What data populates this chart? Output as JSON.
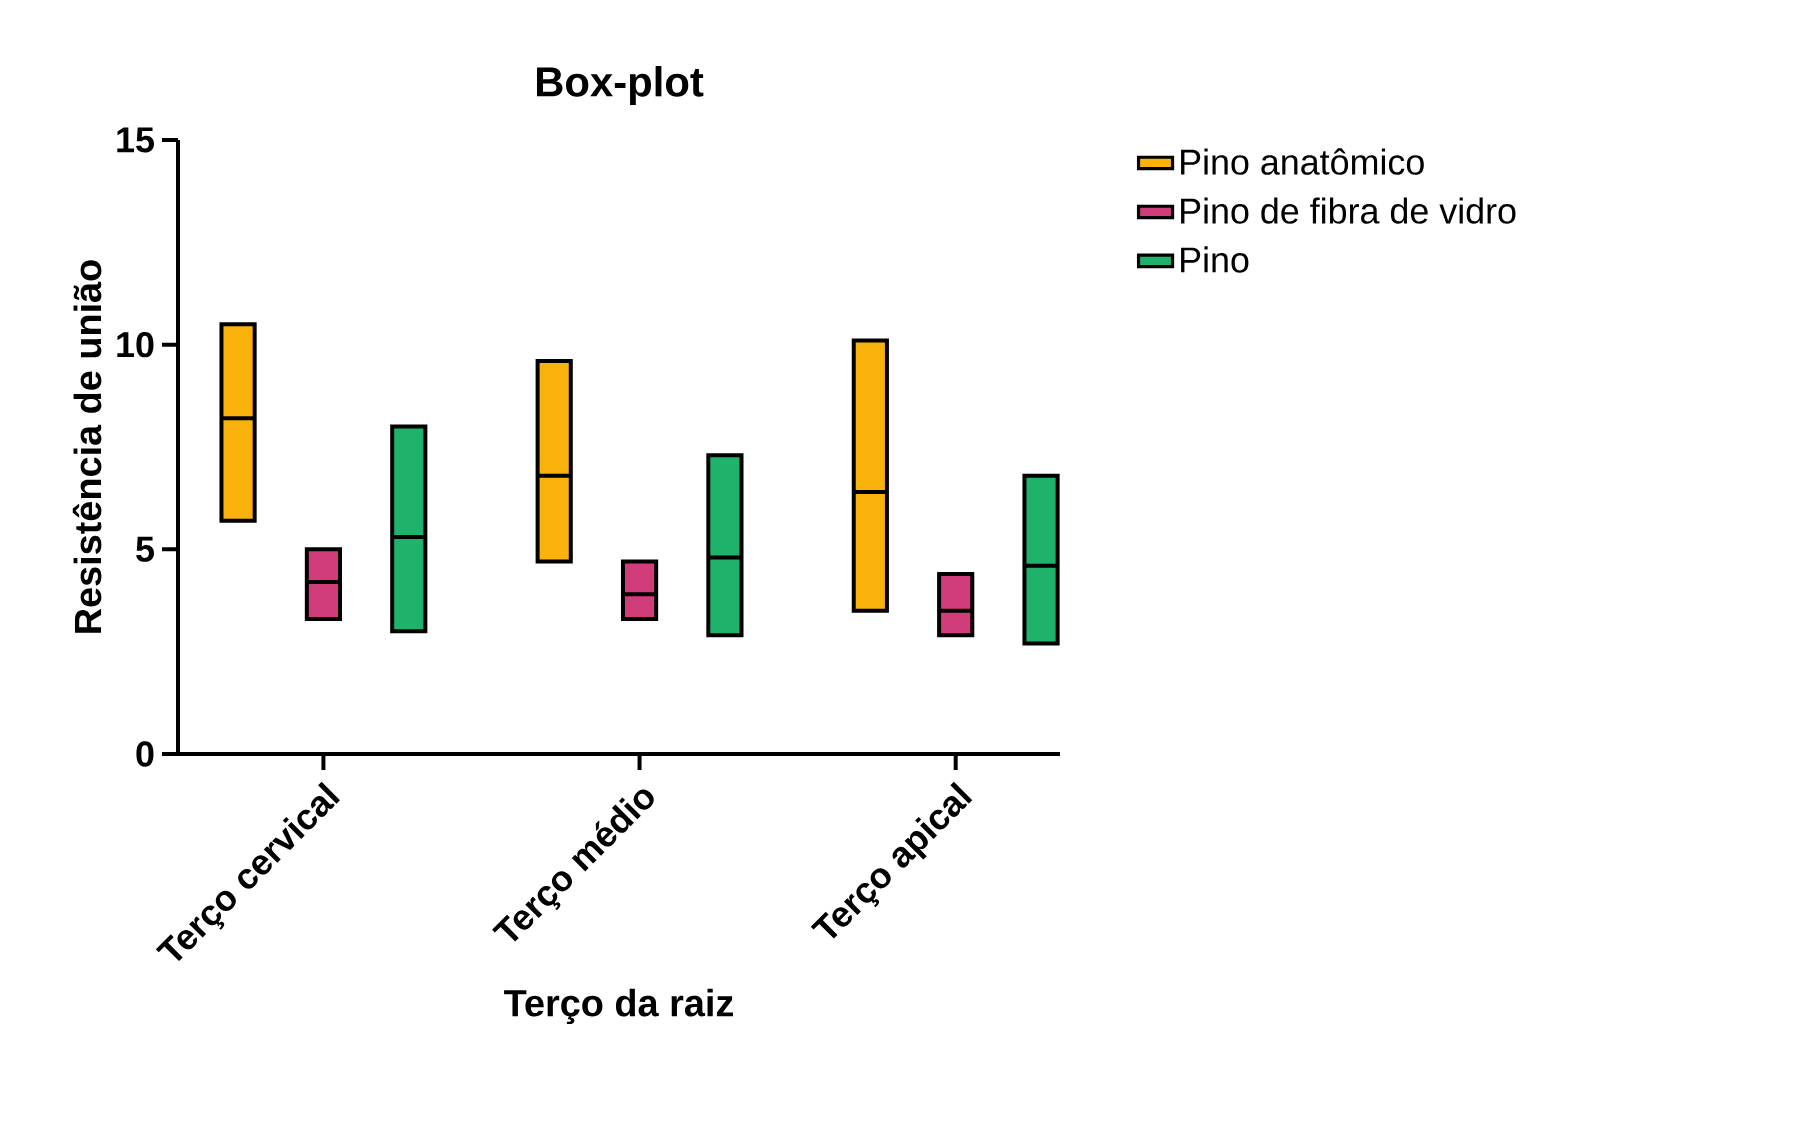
{
  "chart_data": {
    "type": "box",
    "title": "Box-plot",
    "xlabel": "Terço da raiz",
    "ylabel": "Resistência de união",
    "categories": [
      "Terço cervical",
      "Terço médio",
      "Terço apical"
    ],
    "ylim": [
      0,
      15
    ],
    "yticks": [
      0,
      5,
      10,
      15
    ],
    "grid": false,
    "legend": "top right",
    "series": [
      {
        "name": "Pino anatômico",
        "color": "#f9b10c",
        "boxes": [
          {
            "low": 5.7,
            "q1": 5.7,
            "median": 8.2,
            "q3": 10.5,
            "high": 10.5
          },
          {
            "low": 4.7,
            "q1": 4.7,
            "median": 6.8,
            "q3": 9.6,
            "high": 9.6
          },
          {
            "low": 3.5,
            "q1": 3.5,
            "median": 6.4,
            "q3": 10.1,
            "high": 10.1
          }
        ]
      },
      {
        "name": "Pino de fibra de vidro",
        "color": "#d13c7a",
        "boxes": [
          {
            "low": 3.3,
            "q1": 3.3,
            "median": 4.2,
            "q3": 5.0,
            "high": 5.0
          },
          {
            "low": 3.3,
            "q1": 3.3,
            "median": 3.9,
            "q3": 4.7,
            "high": 4.7
          },
          {
            "low": 2.9,
            "q1": 2.9,
            "median": 3.5,
            "q3": 4.4,
            "high": 4.4
          }
        ]
      },
      {
        "name": "Pino",
        "color": "#1fb26a",
        "boxes": [
          {
            "low": 3.0,
            "q1": 3.0,
            "median": 5.3,
            "q3": 8.0,
            "high": 8.0
          },
          {
            "low": 2.9,
            "q1": 2.9,
            "median": 4.8,
            "q3": 7.3,
            "high": 7.3
          },
          {
            "low": 2.7,
            "q1": 2.7,
            "median": 4.6,
            "q3": 6.8,
            "high": 6.8
          }
        ]
      }
    ]
  }
}
